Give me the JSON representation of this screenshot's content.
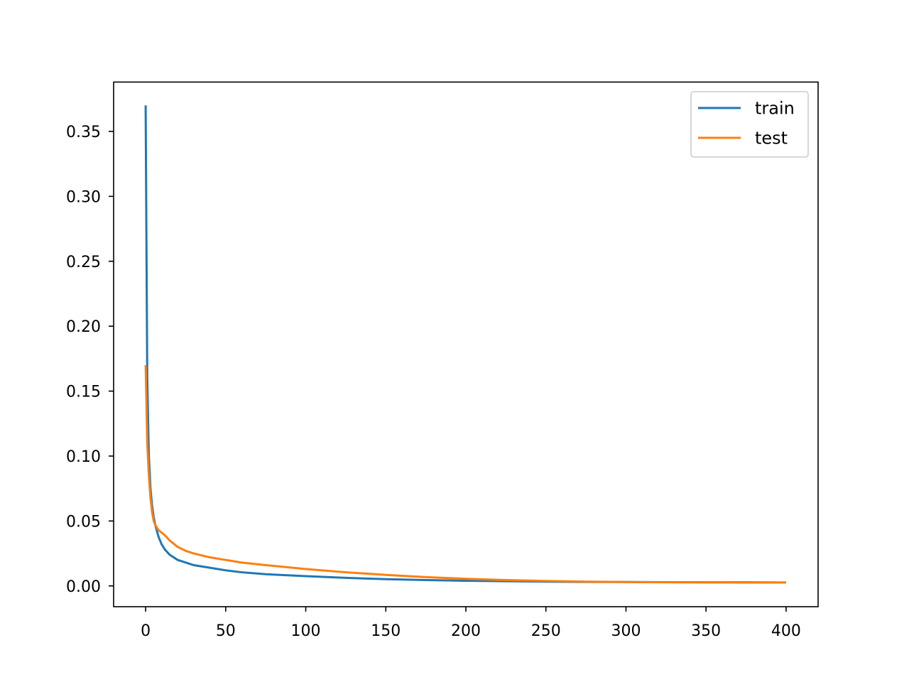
{
  "chart_data": {
    "type": "line",
    "title": "",
    "xlabel": "",
    "ylabel": "",
    "xlim": [
      -20,
      420
    ],
    "ylim": [
      -0.016,
      0.388
    ],
    "xticks": [
      0,
      50,
      100,
      150,
      200,
      250,
      300,
      350,
      400
    ],
    "xtick_labels": [
      "0",
      "50",
      "100",
      "150",
      "200",
      "250",
      "300",
      "350",
      "400"
    ],
    "yticks": [
      0.0,
      0.05,
      0.1,
      0.15,
      0.2,
      0.25,
      0.3,
      0.35
    ],
    "ytick_labels": [
      "0.00",
      "0.05",
      "0.10",
      "0.15",
      "0.20",
      "0.25",
      "0.30",
      "0.35"
    ],
    "grid": false,
    "legend_position": "top-right",
    "series": [
      {
        "name": "train",
        "color": "#1f77b4",
        "x": [
          0,
          1,
          2,
          3,
          4,
          5,
          6,
          8,
          10,
          12,
          15,
          20,
          25,
          30,
          40,
          50,
          60,
          75,
          100,
          125,
          150,
          175,
          200,
          225,
          250,
          275,
          300,
          325,
          350,
          375,
          400
        ],
        "y": [
          0.37,
          0.16,
          0.1,
          0.075,
          0.062,
          0.053,
          0.047,
          0.038,
          0.032,
          0.028,
          0.024,
          0.02,
          0.018,
          0.016,
          0.014,
          0.012,
          0.0105,
          0.009,
          0.0075,
          0.0062,
          0.0052,
          0.0045,
          0.004,
          0.0036,
          0.0033,
          0.0031,
          0.003,
          0.0029,
          0.0028,
          0.0028,
          0.0027
        ]
      },
      {
        "name": "test",
        "color": "#ff7f0e",
        "x": [
          0,
          1,
          2,
          3,
          4,
          5,
          6,
          8,
          10,
          12,
          15,
          20,
          25,
          30,
          40,
          50,
          60,
          75,
          100,
          125,
          150,
          175,
          200,
          225,
          250,
          275,
          300,
          325,
          350,
          375,
          400
        ],
        "y": [
          0.17,
          0.11,
          0.085,
          0.068,
          0.057,
          0.05,
          0.047,
          0.043,
          0.041,
          0.039,
          0.035,
          0.03,
          0.027,
          0.025,
          0.022,
          0.02,
          0.018,
          0.016,
          0.013,
          0.0105,
          0.0085,
          0.0068,
          0.0055,
          0.0045,
          0.0038,
          0.0033,
          0.003,
          0.0028,
          0.0027,
          0.0026,
          0.0026
        ]
      }
    ]
  }
}
